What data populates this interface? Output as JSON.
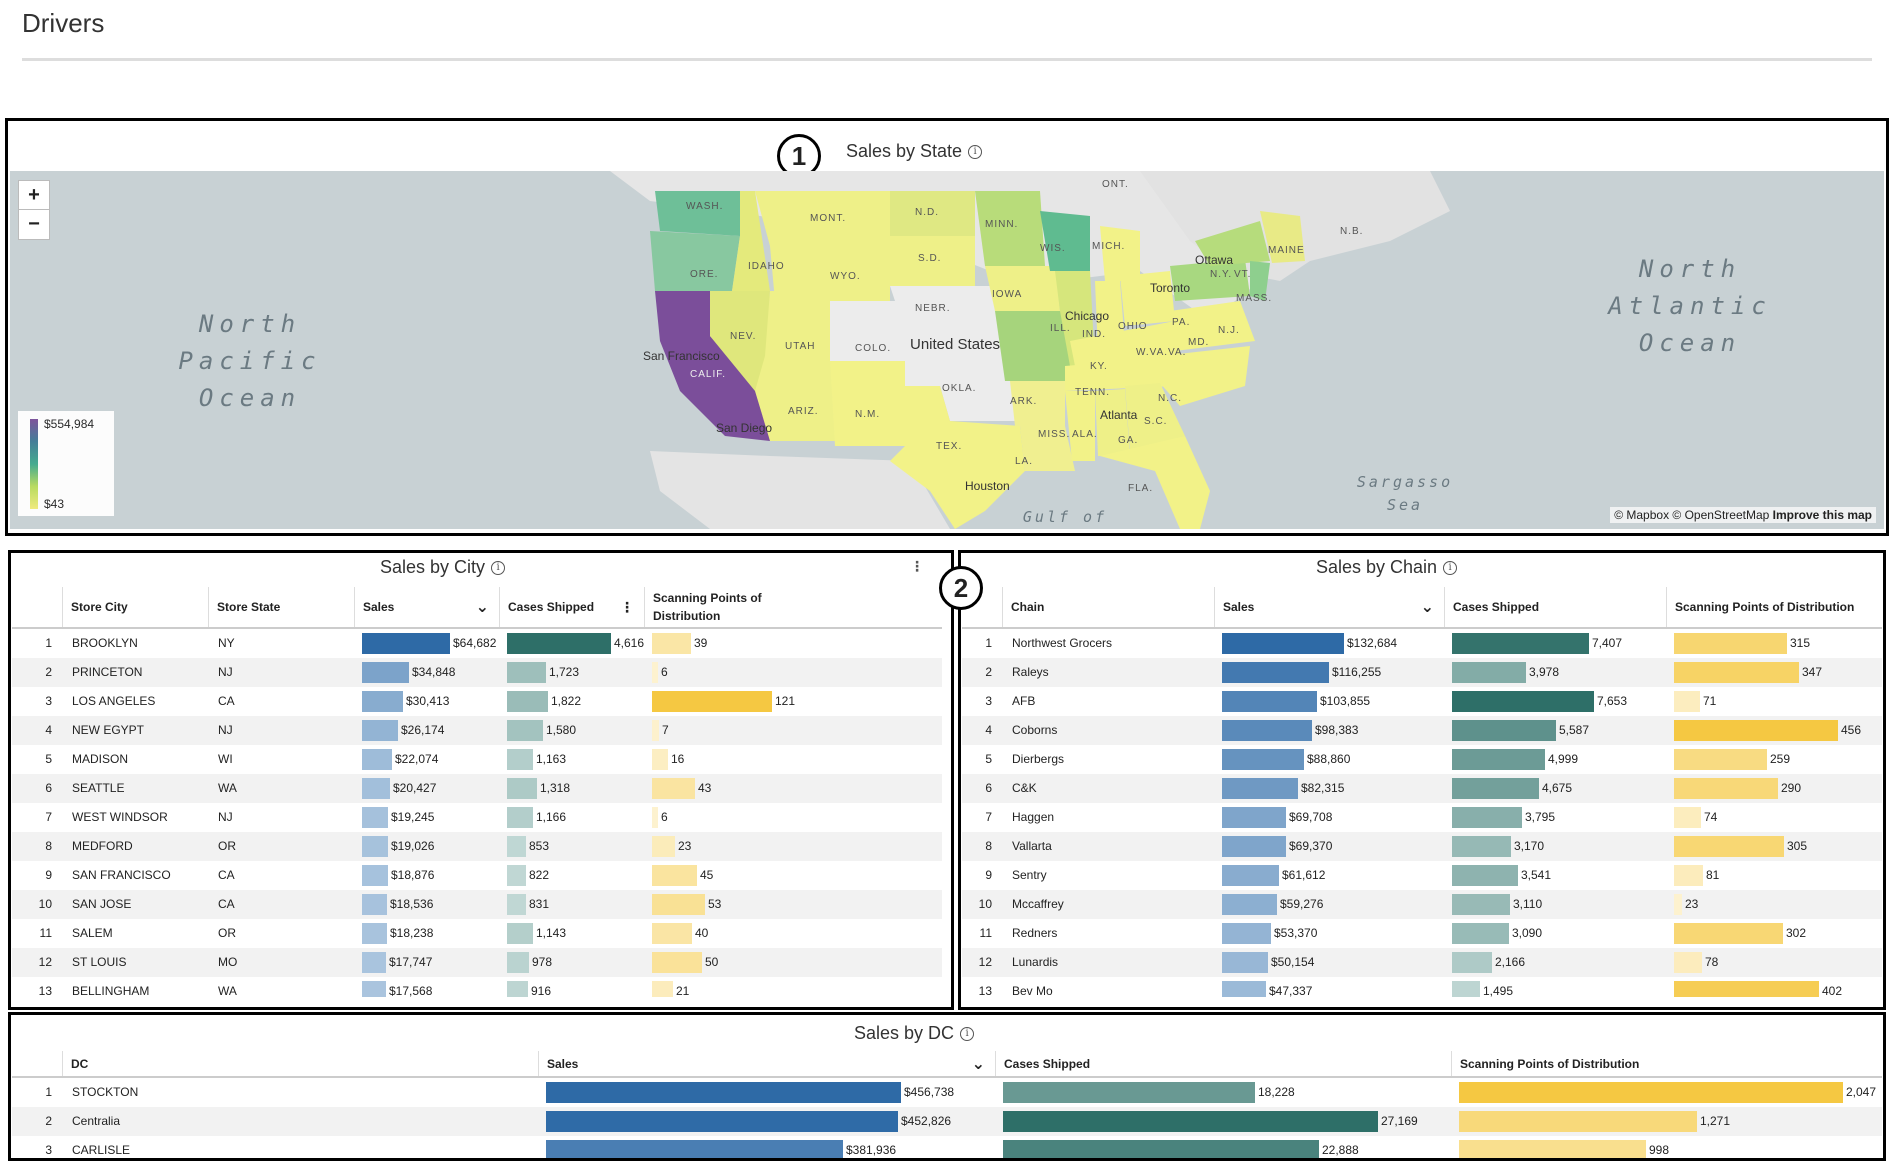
{
  "page": {
    "title": "Drivers"
  },
  "callouts": [
    "1",
    "2"
  ],
  "map_panel": {
    "title": "Sales by State",
    "zoom_in": "+",
    "zoom_out": "−",
    "legend": {
      "max": "$554,984",
      "min": "$43"
    },
    "attribution": "© Mapbox © OpenStreetMap",
    "improve": "Improve this map",
    "oceans": {
      "pacific": "North Pacific Ocean",
      "atlantic": "North Atlantic Ocean",
      "sargasso": "Sargasso Sea",
      "gulf": "Gulf of"
    },
    "cities": [
      "Ottawa",
      "Toronto",
      "Chicago",
      "United States",
      "San Francisco",
      "San Diego",
      "Atlanta",
      "Houston"
    ],
    "state_labels": [
      "WASH.",
      "ORE.",
      "CALIF.",
      "IDAHO",
      "NEV.",
      "MONT.",
      "WYO.",
      "UTAH",
      "ARIZ.",
      "COLO.",
      "N.M.",
      "N.D.",
      "S.D.",
      "NEBR.",
      "OKLA.",
      "TEX.",
      "MINN.",
      "IOWA",
      "ARK.",
      "LA.",
      "WIS.",
      "ILL.",
      "MICH.",
      "IND.",
      "OHIO",
      "KY.",
      "TENN.",
      "MISS.",
      "ALA.",
      "GA.",
      "FLA.",
      "S.C.",
      "N.C.",
      "W.VA.",
      "VA.",
      "PA.",
      "N.Y.",
      "VT.",
      "MAINE",
      "MASS.",
      "N.J.",
      "MD.",
      "ONT.",
      "N.B."
    ],
    "colors": {
      "high": "#7b4e9a",
      "mid": "#3ea98c",
      "low": "#f2ec7a",
      "none": "#e8e8e8"
    }
  },
  "city_table": {
    "title": "Sales by City",
    "headers": [
      "Store City",
      "Store State",
      "Sales",
      "Cases Shipped",
      "Scanning Points of Distribution"
    ],
    "rows": [
      {
        "n": "1",
        "city": "BROOKLYN",
        "state": "NY",
        "sales": "$64,682",
        "cases": "4,616",
        "spd": "39",
        "sales_v": 64682,
        "cases_v": 4616,
        "spd_v": 39
      },
      {
        "n": "2",
        "city": "PRINCETON",
        "state": "NJ",
        "sales": "$34,848",
        "cases": "1,723",
        "spd": "6",
        "sales_v": 34848,
        "cases_v": 1723,
        "spd_v": 6
      },
      {
        "n": "3",
        "city": "LOS ANGELES",
        "state": "CA",
        "sales": "$30,413",
        "cases": "1,822",
        "spd": "121",
        "sales_v": 30413,
        "cases_v": 1822,
        "spd_v": 121
      },
      {
        "n": "4",
        "city": "NEW EGYPT",
        "state": "NJ",
        "sales": "$26,174",
        "cases": "1,580",
        "spd": "7",
        "sales_v": 26174,
        "cases_v": 1580,
        "spd_v": 7
      },
      {
        "n": "5",
        "city": "MADISON",
        "state": "WI",
        "sales": "$22,074",
        "cases": "1,163",
        "spd": "16",
        "sales_v": 22074,
        "cases_v": 1163,
        "spd_v": 16
      },
      {
        "n": "6",
        "city": "SEATTLE",
        "state": "WA",
        "sales": "$20,427",
        "cases": "1,318",
        "spd": "43",
        "sales_v": 20427,
        "cases_v": 1318,
        "spd_v": 43
      },
      {
        "n": "7",
        "city": "WEST WINDSOR",
        "state": "NJ",
        "sales": "$19,245",
        "cases": "1,166",
        "spd": "6",
        "sales_v": 19245,
        "cases_v": 1166,
        "spd_v": 6
      },
      {
        "n": "8",
        "city": "MEDFORD",
        "state": "OR",
        "sales": "$19,026",
        "cases": "853",
        "spd": "23",
        "sales_v": 19026,
        "cases_v": 853,
        "spd_v": 23
      },
      {
        "n": "9",
        "city": "SAN FRANCISCO",
        "state": "CA",
        "sales": "$18,876",
        "cases": "822",
        "spd": "45",
        "sales_v": 18876,
        "cases_v": 822,
        "spd_v": 45
      },
      {
        "n": "10",
        "city": "SAN JOSE",
        "state": "CA",
        "sales": "$18,536",
        "cases": "831",
        "spd": "53",
        "sales_v": 18536,
        "cases_v": 831,
        "spd_v": 53
      },
      {
        "n": "11",
        "city": "SALEM",
        "state": "OR",
        "sales": "$18,238",
        "cases": "1,143",
        "spd": "40",
        "sales_v": 18238,
        "cases_v": 1143,
        "spd_v": 40
      },
      {
        "n": "12",
        "city": "ST LOUIS",
        "state": "MO",
        "sales": "$17,747",
        "cases": "978",
        "spd": "50",
        "sales_v": 17747,
        "cases_v": 978,
        "spd_v": 50
      },
      {
        "n": "13",
        "city": "BELLINGHAM",
        "state": "WA",
        "sales": "$17,568",
        "cases": "916",
        "spd": "21",
        "sales_v": 17568,
        "cases_v": 916,
        "spd_v": 21
      }
    ]
  },
  "chain_table": {
    "title": "Sales by Chain",
    "headers": [
      "Chain",
      "Sales",
      "Cases Shipped",
      "Scanning Points of Distribution"
    ],
    "rows": [
      {
        "n": "1",
        "chain": "Northwest Grocers",
        "sales": "$132,684",
        "cases": "7,407",
        "spd": "315",
        "sales_v": 132684,
        "cases_v": 7407,
        "spd_v": 315
      },
      {
        "n": "2",
        "chain": "Raleys",
        "sales": "$116,255",
        "cases": "3,978",
        "spd": "347",
        "sales_v": 116255,
        "cases_v": 3978,
        "spd_v": 347
      },
      {
        "n": "3",
        "chain": "AFB",
        "sales": "$103,855",
        "cases": "7,653",
        "spd": "71",
        "sales_v": 103855,
        "cases_v": 7653,
        "spd_v": 71
      },
      {
        "n": "4",
        "chain": "Coborns",
        "sales": "$98,383",
        "cases": "5,587",
        "spd": "456",
        "sales_v": 98383,
        "cases_v": 5587,
        "spd_v": 456
      },
      {
        "n": "5",
        "chain": "Dierbergs",
        "sales": "$88,860",
        "cases": "4,999",
        "spd": "259",
        "sales_v": 88860,
        "cases_v": 4999,
        "spd_v": 259
      },
      {
        "n": "6",
        "chain": "C&K",
        "sales": "$82,315",
        "cases": "4,675",
        "spd": "290",
        "sales_v": 82315,
        "cases_v": 4675,
        "spd_v": 290
      },
      {
        "n": "7",
        "chain": "Haggen",
        "sales": "$69,708",
        "cases": "3,795",
        "spd": "74",
        "sales_v": 69708,
        "cases_v": 3795,
        "spd_v": 74
      },
      {
        "n": "8",
        "chain": "Vallarta",
        "sales": "$69,370",
        "cases": "3,170",
        "spd": "305",
        "sales_v": 69370,
        "cases_v": 3170,
        "spd_v": 305
      },
      {
        "n": "9",
        "chain": "Sentry",
        "sales": "$61,612",
        "cases": "3,541",
        "spd": "81",
        "sales_v": 61612,
        "cases_v": 3541,
        "spd_v": 81
      },
      {
        "n": "10",
        "chain": "Mccaffrey",
        "sales": "$59,276",
        "cases": "3,110",
        "spd": "23",
        "sales_v": 59276,
        "cases_v": 3110,
        "spd_v": 23
      },
      {
        "n": "11",
        "chain": "Redners",
        "sales": "$53,370",
        "cases": "3,090",
        "spd": "302",
        "sales_v": 53370,
        "cases_v": 3090,
        "spd_v": 302
      },
      {
        "n": "12",
        "chain": "Lunardis",
        "sales": "$50,154",
        "cases": "2,166",
        "spd": "78",
        "sales_v": 50154,
        "cases_v": 2166,
        "spd_v": 78
      },
      {
        "n": "13",
        "chain": "Bev Mo",
        "sales": "$47,337",
        "cases": "1,495",
        "spd": "402",
        "sales_v": 47337,
        "cases_v": 1495,
        "spd_v": 402
      }
    ]
  },
  "dc_table": {
    "title": "Sales by DC",
    "headers": [
      "DC",
      "Sales",
      "Cases Shipped",
      "Scanning Points of Distribution"
    ],
    "rows": [
      {
        "n": "1",
        "dc": "STOCKTON",
        "sales": "$456,738",
        "cases": "18,228",
        "spd": "2,047",
        "sales_v": 456738,
        "cases_v": 18228,
        "spd_v": 2047
      },
      {
        "n": "2",
        "dc": "Centralia",
        "sales": "$452,826",
        "cases": "27,169",
        "spd": "1,271",
        "sales_v": 452826,
        "cases_v": 27169,
        "spd_v": 1271
      },
      {
        "n": "3",
        "dc": "CARLISLE",
        "sales": "$381,936",
        "cases": "22,888",
        "spd": "998",
        "sales_v": 381936,
        "cases_v": 22888,
        "spd_v": 998
      }
    ]
  },
  "palette": {
    "sales_hi": "#2e6aa6",
    "sales_lo": "#d8e6f3",
    "cases_hi": "#2e6f68",
    "cases_lo": "#e0eeec",
    "spd_hi": "#f5c842",
    "spd_lo": "#fdf4d6"
  }
}
